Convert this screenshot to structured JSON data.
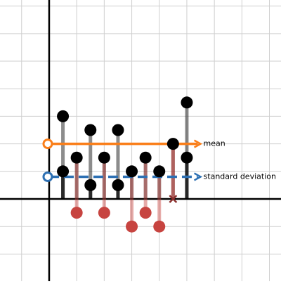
{
  "chart_data": {
    "type": "scatter",
    "x": [
      1,
      2,
      3,
      4,
      5,
      6,
      7,
      8,
      9,
      10
    ],
    "values": [
      6,
      3,
      5,
      3,
      5,
      2,
      3,
      2,
      4,
      7
    ],
    "deviations": [
      2,
      -1,
      1,
      -1,
      1,
      -2,
      -1,
      -2,
      0,
      3
    ],
    "color": "#000000",
    "positive_color": "#000000",
    "negative_color": "#c74440",
    "mean": {
      "label": "mean",
      "value": 4,
      "color": "#fa7e19"
    },
    "std": {
      "label": "standard deviation",
      "value": 1.61,
      "color": "#2d70b3"
    },
    "xlim": [
      -3.57,
      16.84
    ],
    "ylim": [
      -5.97,
      14.44
    ],
    "xticks": [
      -2,
      0,
      2,
      4,
      6,
      8,
      10,
      12,
      14,
      16
    ],
    "yticks": [
      -4,
      -2,
      0,
      2,
      4,
      6,
      8,
      10,
      12,
      14
    ],
    "grid": true
  }
}
